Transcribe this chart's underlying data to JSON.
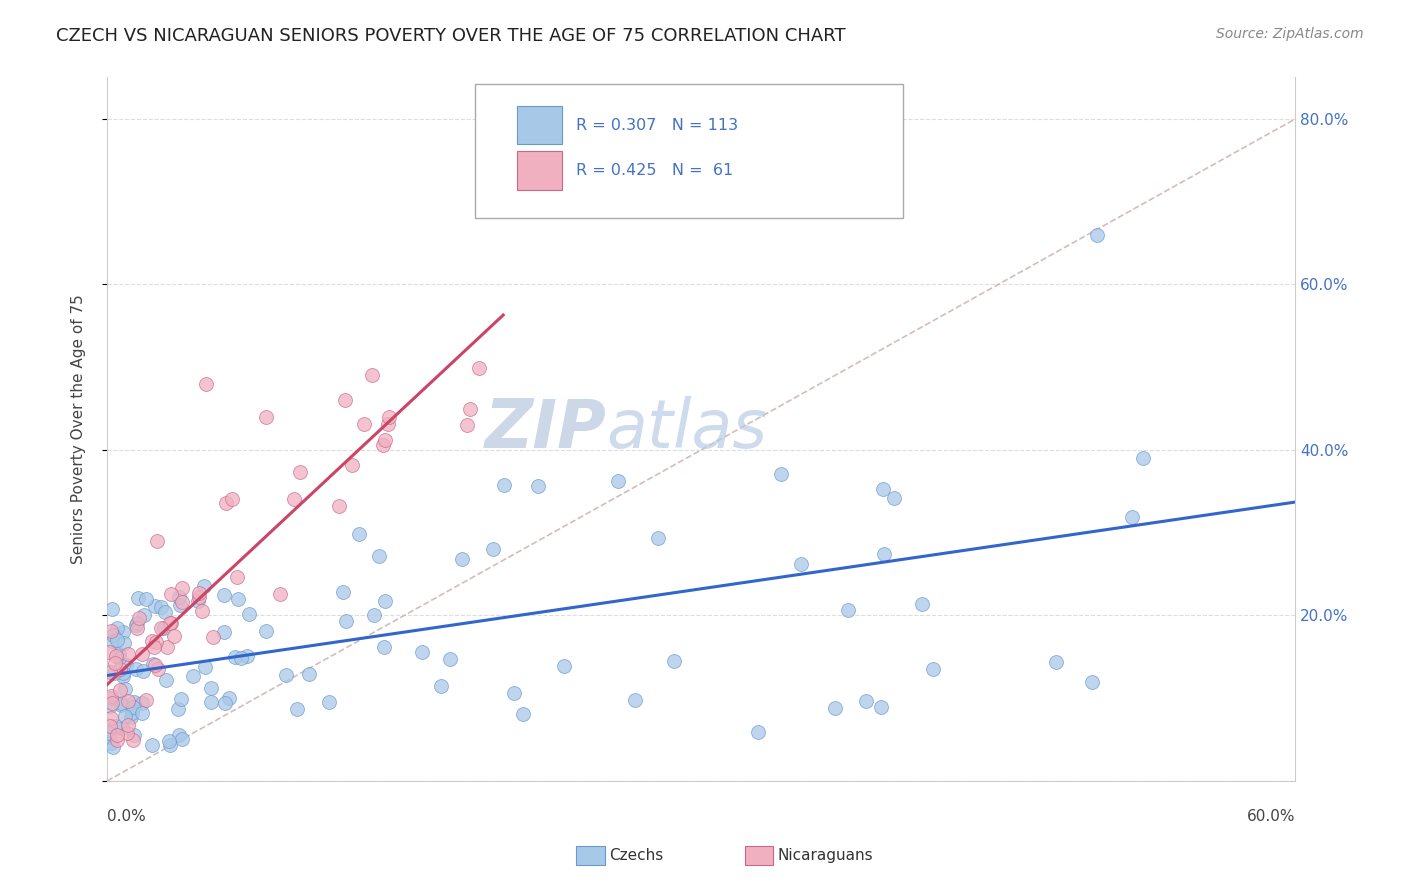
{
  "title": "CZECH VS NICARAGUAN SENIORS POVERTY OVER THE AGE OF 75 CORRELATION CHART",
  "source": "Source: ZipAtlas.com",
  "ylabel": "Seniors Poverty Over the Age of 75",
  "czech_R": 0.307,
  "czech_N": 113,
  "nicaraguan_R": 0.425,
  "nicaraguan_N": 61,
  "czech_color": "#a8c8e8",
  "czech_color_edge": "#6699cc",
  "nicaraguan_color": "#f0b0c0",
  "nicaraguan_color_edge": "#cc6688",
  "blue_text_color": "#4472c4",
  "trend_blue": "#3366cc",
  "trend_pink": "#cc4466",
  "diag_color": "#ccaaaa",
  "watermark_color": "#ccd8e8",
  "background_color": "#ffffff",
  "xmin": 0.0,
  "xmax": 0.6,
  "ymin": 0.0,
  "ymax": 0.85,
  "y_ticks": [
    0.0,
    0.2,
    0.4,
    0.6,
    0.8
  ],
  "y_tick_labels": [
    "",
    "20.0%",
    "40.0%",
    "60.0%",
    "80.0%"
  ],
  "x_tick_labels_show": [
    "0.0%",
    "60.0%"
  ],
  "grid_color": "#dddddd",
  "legend_czech_text": "R = 0.307   N = 113",
  "legend_nic_text": "R = 0.425   N =  61",
  "bottom_legend_czechs": "Czechs",
  "bottom_legend_nic": "Nicaraguans"
}
